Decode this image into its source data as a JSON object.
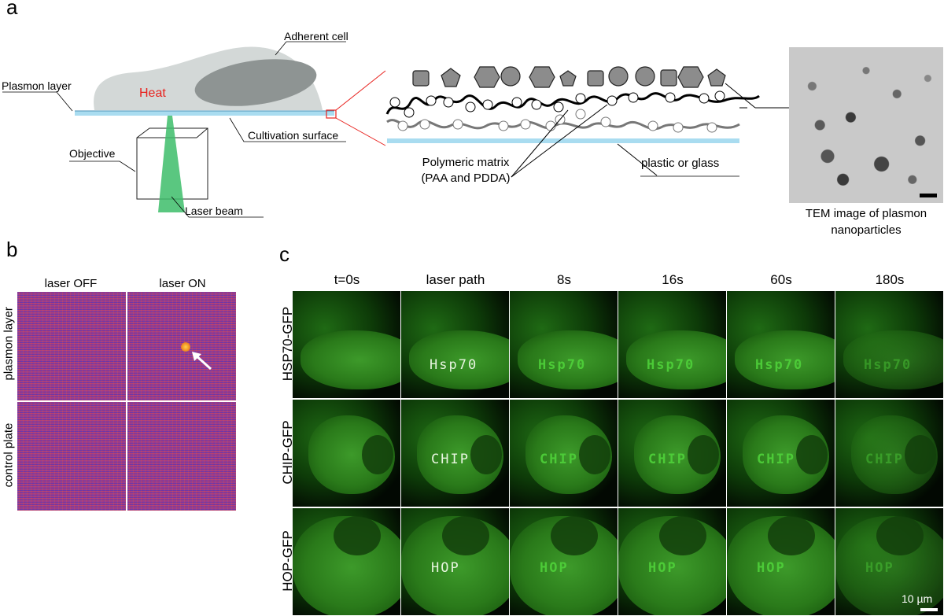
{
  "panel_a": {
    "letter": "a",
    "adherent_cell": "Adherent cell",
    "heat": "Heat",
    "plasmon_layer": "Plasmon layer",
    "cultivation_surface": "Cultivation surface",
    "objective": "Objective",
    "laser_beam": "Laser beam",
    "polymeric_matrix_1": "Polymeric matrix",
    "polymeric_matrix_2": "(PAA and PDDA)",
    "plastic_or_glass": "plastic or glass",
    "tem_caption_1": "TEM image of plasmon",
    "tem_caption_2": "nanoparticles"
  },
  "panel_b": {
    "letter": "b",
    "col_off": "laser OFF",
    "col_on": "laser ON",
    "row_plasmon": "plasmon layer",
    "row_control": "control plate"
  },
  "panel_c": {
    "letter": "c",
    "columns": [
      "t=0s",
      "laser path",
      "8s",
      "16s",
      "60s",
      "180s"
    ],
    "rows": [
      "HSP70-GFP",
      "CHIP-GFP",
      "HOP-GFP"
    ],
    "scale_bar": "10 µm"
  },
  "colors": {
    "heat": "#e8211d",
    "gfp": "#2f8f1f",
    "cultivation_surface": "#a9dcf0",
    "laser": "#3dbd6a",
    "zoom_lines": "#e8211d"
  }
}
